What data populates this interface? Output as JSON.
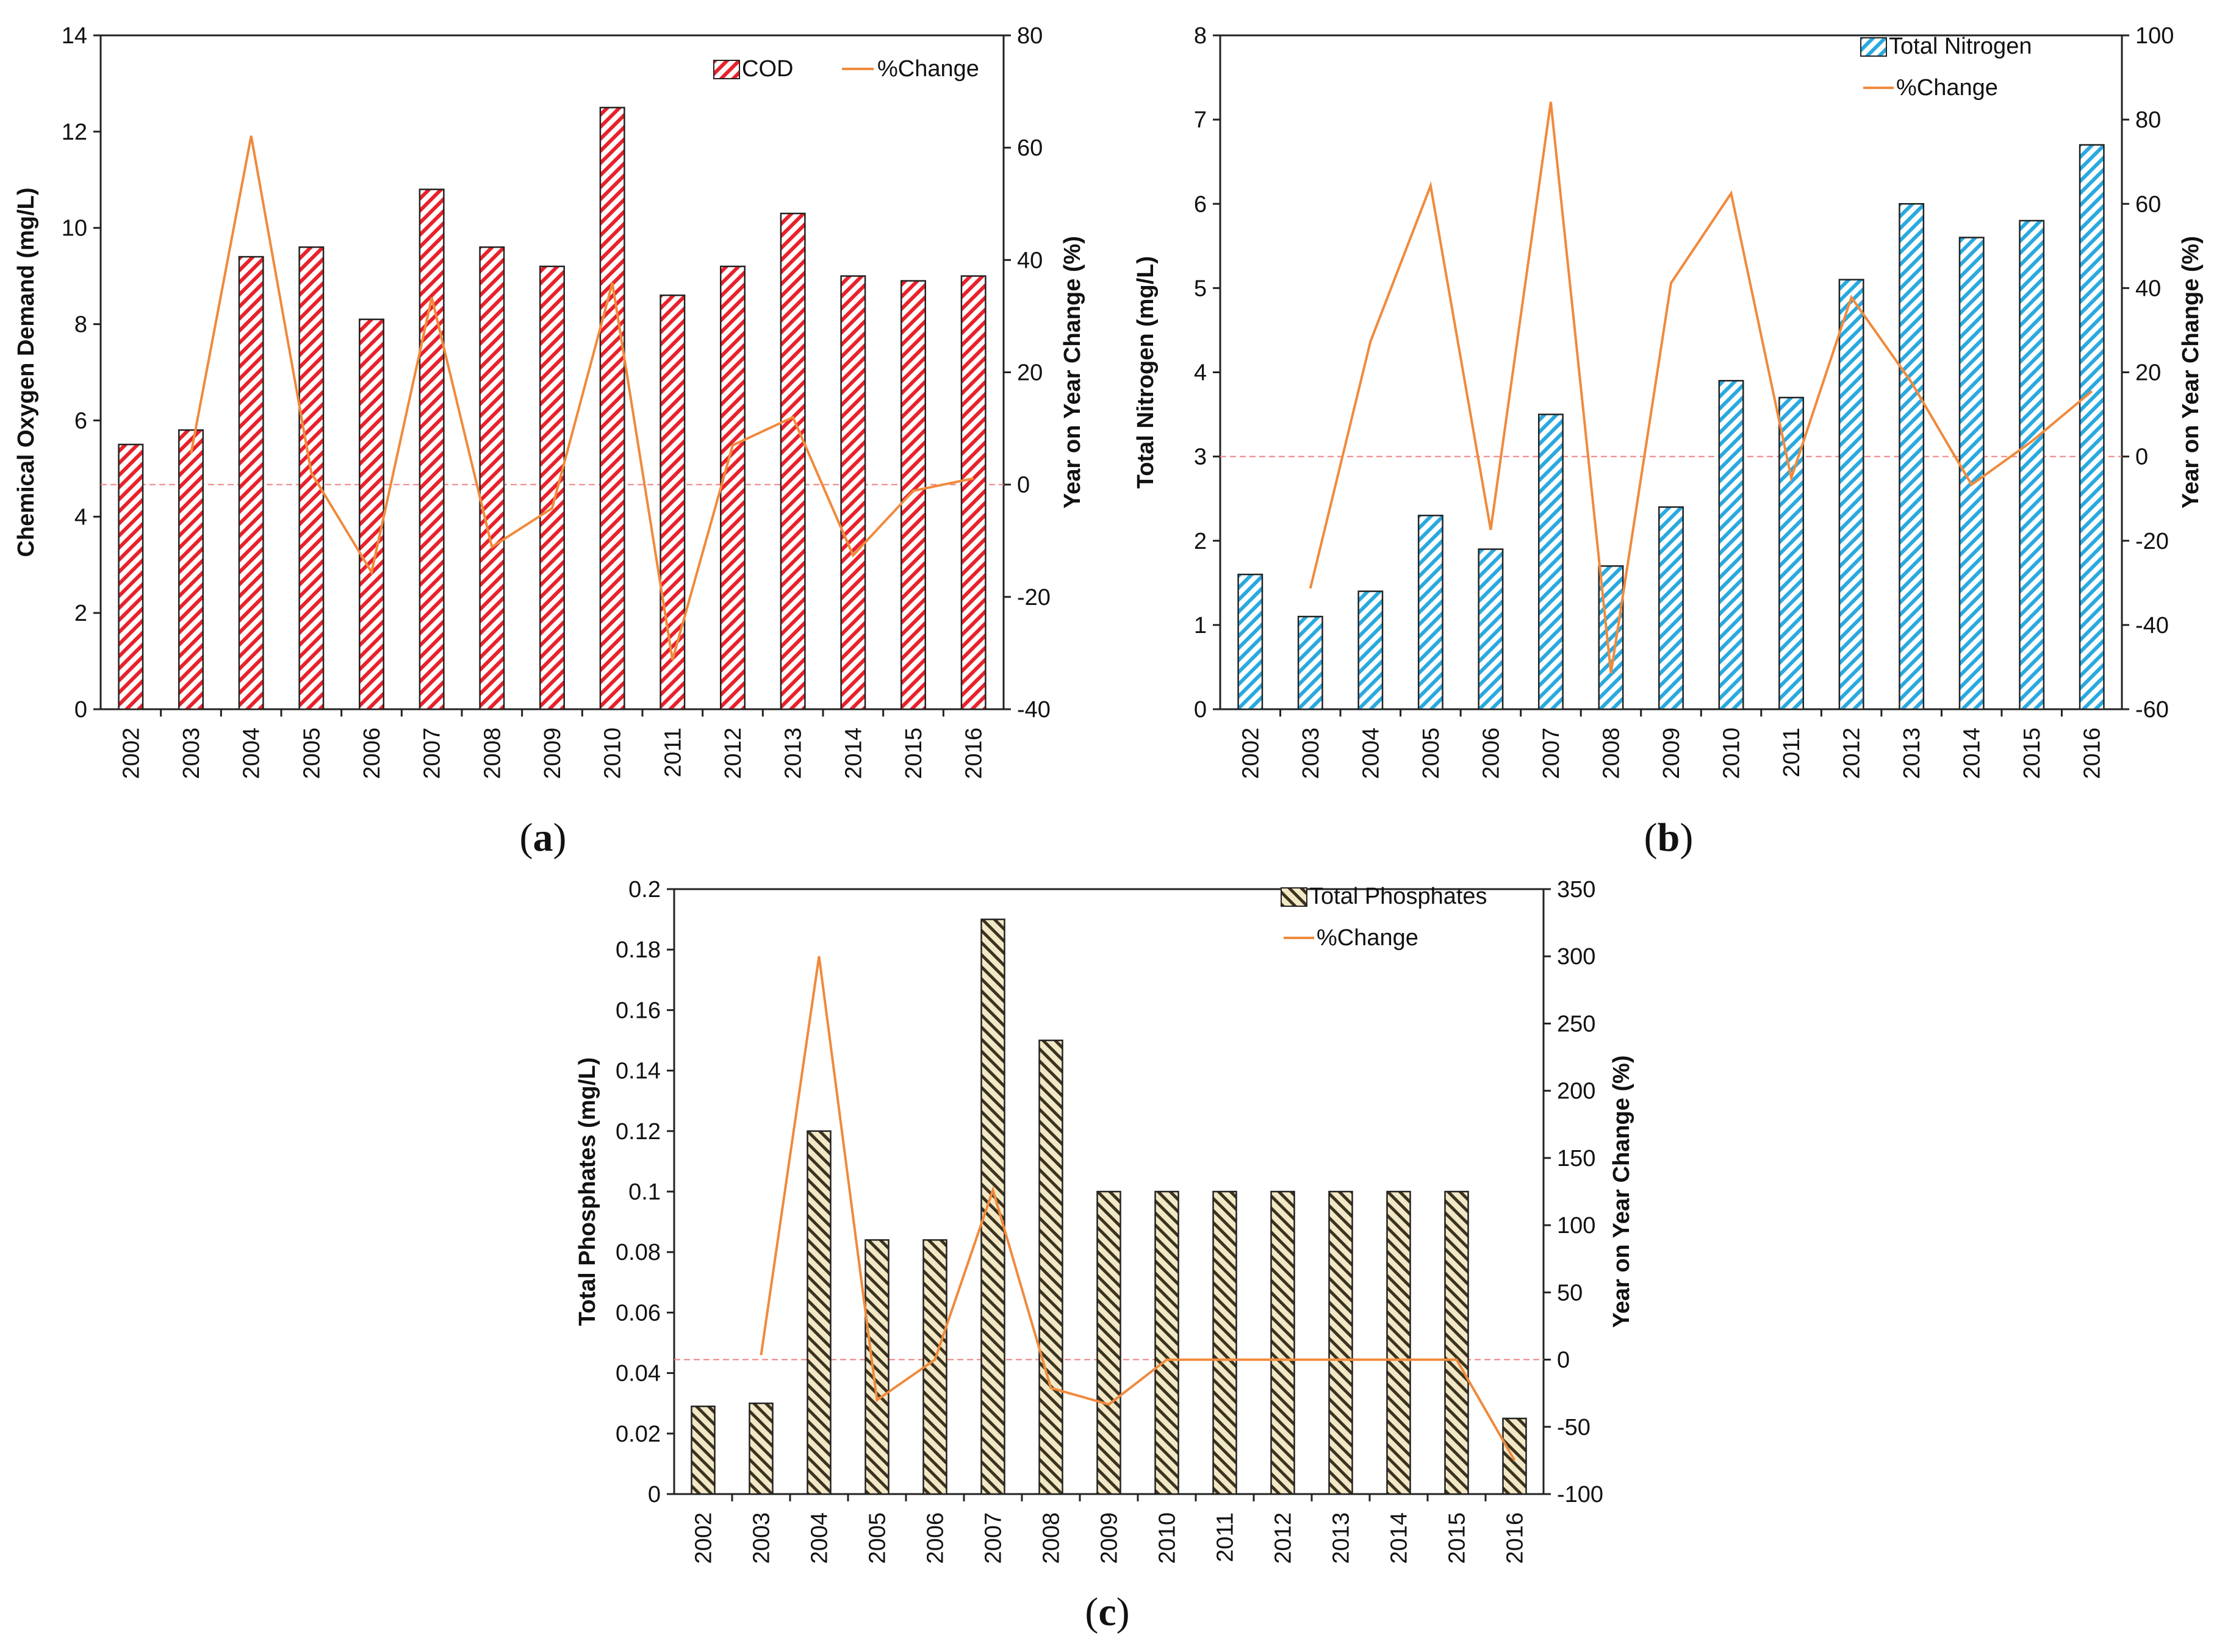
{
  "chart_data": [
    {
      "type": "bar",
      "panel_label": "a",
      "categories": [
        "2002",
        "2003",
        "2004",
        "2005",
        "2006",
        "2007",
        "2008",
        "2009",
        "2010",
        "2011",
        "2012",
        "2013",
        "2014",
        "2015",
        "2016"
      ],
      "series": [
        {
          "name": "COD",
          "axis": "left",
          "kind": "bar",
          "color": "#e8212b",
          "values": [
            5.5,
            5.8,
            9.4,
            9.6,
            8.1,
            10.8,
            9.6,
            9.2,
            12.5,
            8.6,
            9.2,
            10.3,
            9.0,
            8.9,
            9.0
          ]
        },
        {
          "name": "%Change",
          "axis": "right",
          "kind": "line",
          "color": "#f08a3c",
          "values": [
            null,
            5.5,
            62.1,
            2.1,
            -15.6,
            33.3,
            -11.1,
            -4.2,
            35.9,
            -31.2,
            7.0,
            12.0,
            -12.6,
            -1.1,
            1.1
          ]
        }
      ],
      "ylabel": "Chemical Oxygen Demand (mg/L)",
      "ylim": [
        0,
        14
      ],
      "yticks": [
        0,
        2,
        4,
        6,
        8,
        10,
        12,
        14
      ],
      "y2label": "Year on Year Change (%)",
      "y2lim": [
        -40,
        80
      ],
      "y2ticks": [
        -40,
        -20,
        0,
        20,
        40,
        60,
        80
      ],
      "legend": [
        "COD",
        "%Change"
      ],
      "legend_position": "top-right"
    },
    {
      "type": "bar",
      "panel_label": "b",
      "categories": [
        "2002",
        "2003",
        "2004",
        "2005",
        "2006",
        "2007",
        "2008",
        "2009",
        "2010",
        "2011",
        "2012",
        "2013",
        "2014",
        "2015",
        "2016"
      ],
      "series": [
        {
          "name": "Total Nitrogen",
          "axis": "left",
          "kind": "bar",
          "color": "#29a9df",
          "values": [
            1.6,
            1.1,
            1.4,
            2.3,
            1.9,
            3.5,
            1.7,
            2.4,
            3.9,
            3.7,
            5.1,
            6.0,
            5.6,
            5.8,
            6.7
          ]
        },
        {
          "name": "%Change",
          "axis": "right",
          "kind": "line",
          "color": "#f08a3c",
          "values": [
            null,
            -31.3,
            27.3,
            64.3,
            -17.4,
            84.2,
            -51.4,
            41.2,
            62.5,
            -5.1,
            37.8,
            17.6,
            -6.7,
            3.6,
            15.5
          ]
        }
      ],
      "ylabel": "Total Nitrogen (mg/L)",
      "ylim": [
        0,
        8
      ],
      "yticks": [
        0,
        1,
        2,
        3,
        4,
        5,
        6,
        7,
        8
      ],
      "y2label": "Year on Year Change (%)",
      "y2lim": [
        -60,
        100
      ],
      "y2ticks": [
        -60,
        -40,
        -20,
        0,
        20,
        40,
        60,
        80,
        100
      ],
      "legend": [
        "Total Nitrogen",
        "%Change"
      ],
      "legend_position": "top-right"
    },
    {
      "type": "bar",
      "panel_label": "c",
      "categories": [
        "2002",
        "2003",
        "2004",
        "2005",
        "2006",
        "2007",
        "2008",
        "2009",
        "2010",
        "2011",
        "2012",
        "2013",
        "2014",
        "2015",
        "2016"
      ],
      "series": [
        {
          "name": "Total Phosphates",
          "axis": "left",
          "kind": "bar",
          "color": "#8a7a3a",
          "values": [
            0.029,
            0.03,
            0.12,
            0.084,
            0.084,
            0.19,
            0.15,
            0.1,
            0.1,
            0.1,
            0.1,
            0.1,
            0.1,
            0.1,
            0.025
          ]
        },
        {
          "name": "%Change",
          "axis": "right",
          "kind": "line",
          "color": "#f08a3c",
          "values": [
            null,
            3.4,
            300,
            -30,
            0,
            126.2,
            -21.1,
            -33.3,
            0,
            0,
            0,
            0,
            0,
            0,
            -75
          ]
        }
      ],
      "ylabel": "Total Phosphates (mg/L)",
      "ylim": [
        0,
        0.2
      ],
      "yticks": [
        0,
        0.02,
        0.04,
        0.06,
        0.08,
        0.1,
        0.12,
        0.14,
        0.16,
        0.18,
        0.2
      ],
      "y2label": "Year on Year Change (%)",
      "y2lim": [
        -100,
        350
      ],
      "y2ticks": [
        -100,
        -50,
        0,
        50,
        100,
        150,
        200,
        250,
        300,
        350
      ],
      "legend": [
        "Total Phosphates",
        "%Change"
      ],
      "legend_position": "top-right"
    }
  ]
}
